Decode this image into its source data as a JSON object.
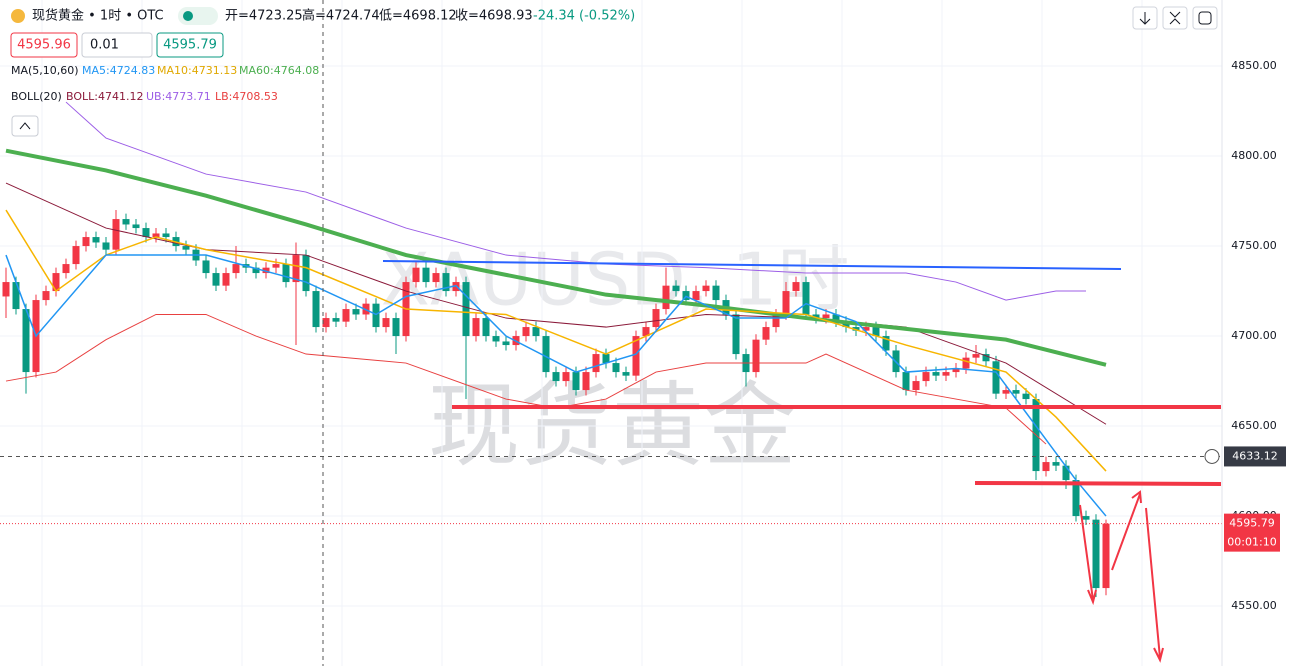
{
  "header": {
    "symbol": "现货黄金 • 1时 • OTC",
    "open": "开=4723.25",
    "high": "高=4724.74",
    "low": "低=4698.12",
    "close": "收=4698.93",
    "change": "-24.34 (-0.52%)"
  },
  "order": {
    "sell": "4595.96",
    "qty": "0.01",
    "buy": "4595.79"
  },
  "indicators": {
    "ma": {
      "label": "MA(5,10,60)",
      "items": [
        "MA5:4724.83",
        "MA10:4731.13",
        "MA60:4764.08"
      ]
    },
    "boll": {
      "label": "BOLL(20)",
      "items": [
        "BOLL:4741.12",
        "UB:4773.71",
        "LB:4708.53"
      ]
    }
  },
  "watermark": [
    "XAUUSD, 1时",
    "现货黄金"
  ],
  "chart_data": {
    "type": "candlestick",
    "up_color": "#f23645",
    "down_color": "#089981",
    "ylim": [
      4516.7,
      4886.7
    ],
    "yticks": [
      {
        "value": 4550,
        "label": "4550.00"
      },
      {
        "value": 4600,
        "label": "4600.00"
      },
      {
        "value": 4650,
        "label": "4650.00"
      },
      {
        "value": 4700,
        "label": "4700.00"
      },
      {
        "value": 4750,
        "label": "4750.00"
      },
      {
        "value": 4800,
        "label": "4800.00"
      },
      {
        "value": 4850,
        "label": "4850.00"
      }
    ],
    "ohlc": [
      [
        4722,
        4738,
        4710,
        4730
      ],
      [
        4730,
        4733,
        4712,
        4715
      ],
      [
        4715,
        4718,
        4668,
        4680
      ],
      [
        4680,
        4723,
        4677,
        4720
      ],
      [
        4720,
        4728,
        4717,
        4725
      ],
      [
        4725,
        4738,
        4722,
        4735
      ],
      [
        4735,
        4743,
        4732,
        4740
      ],
      [
        4740,
        4753,
        4737,
        4750
      ],
      [
        4750,
        4758,
        4747,
        4755
      ],
      [
        4755,
        4758,
        4749,
        4752
      ],
      [
        4752,
        4755,
        4745,
        4748
      ],
      [
        4748,
        4770,
        4745,
        4765
      ],
      [
        4765,
        4768,
        4759,
        4762
      ],
      [
        4762,
        4765,
        4757,
        4760
      ],
      [
        4760,
        4763,
        4752,
        4755
      ],
      [
        4755,
        4760,
        4752,
        4757
      ],
      [
        4757,
        4760,
        4752,
        4755
      ],
      [
        4755,
        4758,
        4747,
        4750
      ],
      [
        4750,
        4753,
        4745,
        4748
      ],
      [
        4748,
        4751,
        4739,
        4742
      ],
      [
        4742,
        4745,
        4732,
        4735
      ],
      [
        4735,
        4738,
        4725,
        4728
      ],
      [
        4728,
        4738,
        4725,
        4735
      ],
      [
        4735,
        4750,
        4732,
        4740
      ],
      [
        4740,
        4743,
        4735,
        4738
      ],
      [
        4738,
        4741,
        4732,
        4735
      ],
      [
        4735,
        4741,
        4732,
        4738
      ],
      [
        4738,
        4743,
        4735,
        4740
      ],
      [
        4740,
        4743,
        4727,
        4730
      ],
      [
        4730,
        4752,
        4695,
        4745
      ],
      [
        4745,
        4748,
        4722,
        4725
      ],
      [
        4725,
        4728,
        4702,
        4705
      ],
      [
        4705,
        4713,
        4702,
        4710
      ],
      [
        4710,
        4713,
        4705,
        4708
      ],
      [
        4708,
        4718,
        4705,
        4715
      ],
      [
        4715,
        4718,
        4709,
        4712
      ],
      [
        4712,
        4721,
        4709,
        4718
      ],
      [
        4718,
        4721,
        4702,
        4705
      ],
      [
        4705,
        4713,
        4702,
        4710
      ],
      [
        4710,
        4713,
        4690,
        4700
      ],
      [
        4700,
        4733,
        4697,
        4730
      ],
      [
        4730,
        4741,
        4727,
        4738
      ],
      [
        4738,
        4741,
        4727,
        4730
      ],
      [
        4730,
        4738,
        4727,
        4735
      ],
      [
        4735,
        4738,
        4722,
        4725
      ],
      [
        4725,
        4733,
        4722,
        4730
      ],
      [
        4730,
        4733,
        4665,
        4700
      ],
      [
        4700,
        4713,
        4697,
        4710
      ],
      [
        4710,
        4713,
        4697,
        4700
      ],
      [
        4700,
        4703,
        4694,
        4697
      ],
      [
        4697,
        4700,
        4692,
        4695
      ],
      [
        4695,
        4703,
        4692,
        4700
      ],
      [
        4700,
        4708,
        4697,
        4705
      ],
      [
        4705,
        4708,
        4697,
        4700
      ],
      [
        4700,
        4703,
        4677,
        4680
      ],
      [
        4680,
        4683,
        4672,
        4675
      ],
      [
        4675,
        4683,
        4672,
        4680
      ],
      [
        4680,
        4683,
        4667,
        4670
      ],
      [
        4670,
        4683,
        4667,
        4680
      ],
      [
        4680,
        4693,
        4677,
        4690
      ],
      [
        4690,
        4693,
        4682,
        4685
      ],
      [
        4685,
        4688,
        4677,
        4680
      ],
      [
        4680,
        4683,
        4675,
        4678
      ],
      [
        4678,
        4703,
        4675,
        4700
      ],
      [
        4700,
        4708,
        4697,
        4705
      ],
      [
        4705,
        4718,
        4702,
        4715
      ],
      [
        4715,
        4738,
        4712,
        4728
      ],
      [
        4728,
        4731,
        4722,
        4725
      ],
      [
        4725,
        4728,
        4717,
        4720
      ],
      [
        4720,
        4728,
        4717,
        4725
      ],
      [
        4725,
        4731,
        4722,
        4728
      ],
      [
        4728,
        4731,
        4717,
        4720
      ],
      [
        4720,
        4723,
        4709,
        4712
      ],
      [
        4712,
        4715,
        4687,
        4690
      ],
      [
        4690,
        4693,
        4672,
        4680
      ],
      [
        4680,
        4701,
        4677,
        4698
      ],
      [
        4698,
        4708,
        4695,
        4705
      ],
      [
        4705,
        4715,
        4702,
        4712
      ],
      [
        4712,
        4730,
        4709,
        4725
      ],
      [
        4725,
        4733,
        4722,
        4730
      ],
      [
        4730,
        4733,
        4709,
        4712
      ],
      [
        4712,
        4715,
        4707,
        4710
      ],
      [
        4710,
        4715,
        4707,
        4712
      ],
      [
        4712,
        4715,
        4705,
        4708
      ],
      [
        4708,
        4711,
        4702,
        4705
      ],
      [
        4705,
        4708,
        4700,
        4703
      ],
      [
        4703,
        4708,
        4700,
        4705
      ],
      [
        4705,
        4708,
        4697,
        4700
      ],
      [
        4700,
        4703,
        4689,
        4692
      ],
      [
        4692,
        4695,
        4677,
        4680
      ],
      [
        4680,
        4683,
        4667,
        4670
      ],
      [
        4670,
        4678,
        4667,
        4675
      ],
      [
        4675,
        4683,
        4672,
        4680
      ],
      [
        4680,
        4683,
        4675,
        4678
      ],
      [
        4678,
        4683,
        4675,
        4680
      ],
      [
        4680,
        4685,
        4677,
        4682
      ],
      [
        4682,
        4691,
        4679,
        4688
      ],
      [
        4688,
        4695,
        4685,
        4690
      ],
      [
        4690,
        4693,
        4683,
        4686
      ],
      [
        4686,
        4689,
        4665,
        4668
      ],
      [
        4668,
        4673,
        4665,
        4670
      ],
      [
        4670,
        4673,
        4665,
        4668
      ],
      [
        4668,
        4671,
        4662,
        4665
      ],
      [
        4665,
        4668,
        4620,
        4625
      ],
      [
        4625,
        4633,
        4622,
        4630
      ],
      [
        4630,
        4633,
        4625,
        4628
      ],
      [
        4628,
        4631,
        4615,
        4620
      ],
      [
        4620,
        4623,
        4597,
        4600
      ],
      [
        4600,
        4603,
        4595,
        4598
      ],
      [
        4598,
        4601,
        4555,
        4560
      ],
      [
        4560,
        4598,
        4556,
        4595.79
      ]
    ],
    "overlays": [
      {
        "color": "#9c5ee6",
        "width": 1,
        "x": [
          6,
          10,
          20,
          30,
          40,
          50,
          60,
          70,
          80,
          90,
          95,
          100,
          105,
          108
        ],
        "values": [
          4830,
          4810,
          4790,
          4780,
          4760,
          4745,
          4740,
          4738,
          4735,
          4735,
          4730,
          4720,
          4725,
          4725
        ]
      },
      {
        "color": "#8b1a3a",
        "width": 1,
        "x": [
          0,
          10,
          20,
          30,
          40,
          50,
          60,
          70,
          80,
          90,
          100,
          110
        ],
        "values": [
          4785,
          4760,
          4748,
          4745,
          4725,
          4710,
          4705,
          4712,
          4710,
          4705,
          4685,
          4651
        ]
      },
      {
        "color": "#e84040",
        "width": 1,
        "x": [
          0,
          5,
          10,
          15,
          20,
          25,
          30,
          40,
          50,
          55,
          60,
          65,
          70,
          80,
          82,
          90,
          100,
          104
        ],
        "values": [
          4675,
          4680,
          4698,
          4712,
          4712,
          4700,
          4690,
          4685,
          4665,
          4660,
          4665,
          4680,
          4685,
          4685,
          4690,
          4670,
          4660,
          4640
        ]
      },
      {
        "color": "#4caf50",
        "width": 4,
        "x": [
          0,
          10,
          20,
          30,
          40,
          50,
          60,
          70,
          80,
          90,
          100,
          110
        ],
        "values": [
          4803,
          4792,
          4778,
          4762,
          4745,
          4734,
          4723,
          4717,
          4710,
          4704,
          4698,
          4684
        ]
      },
      {
        "color": "#f7b500",
        "width": 1.5,
        "x": [
          0,
          5,
          10,
          15,
          20,
          30,
          40,
          50,
          60,
          70,
          80,
          90,
          100,
          105,
          110
        ],
        "values": [
          4770,
          4725,
          4745,
          4755,
          4748,
          4738,
          4715,
          4712,
          4690,
          4715,
          4712,
          4695,
          4680,
          4655,
          4625
        ]
      },
      {
        "color": "#2196f3",
        "width": 1.5,
        "x": [
          0,
          3,
          10,
          20,
          30,
          37,
          40,
          45,
          50,
          57,
          63,
          68,
          73,
          78,
          80,
          85,
          90,
          95,
          99,
          103,
          107,
          110
        ],
        "values": [
          4745,
          4700,
          4745,
          4745,
          4730,
          4712,
          4722,
          4728,
          4700,
          4680,
          4690,
          4722,
          4710,
          4710,
          4718,
          4708,
          4680,
          4682,
          4680,
          4650,
          4620,
          4600
        ]
      }
    ],
    "crosshair": {
      "value": 4633.12,
      "label": "4633.12"
    },
    "last": {
      "value": 4595.79,
      "label": "4595.79"
    },
    "countdown": "00:01:10"
  }
}
